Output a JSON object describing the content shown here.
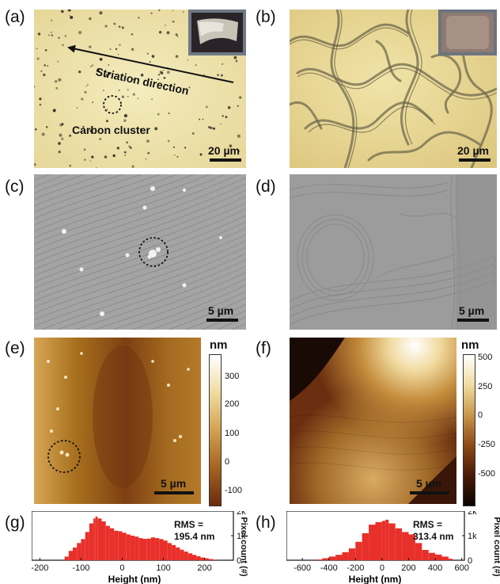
{
  "panels": {
    "a": {
      "label": "(a)",
      "striation": "Striation direction",
      "cluster": "Carbon cluster",
      "scale": "20 µm"
    },
    "b": {
      "label": "(b)",
      "scale": "20 µm"
    },
    "c": {
      "label": "(c)",
      "scale": "5 µm"
    },
    "d": {
      "label": "(d)",
      "scale": "5 µm"
    },
    "e": {
      "label": "(e)",
      "scale": "5 µm",
      "unit": "nm",
      "ticks": [
        "300",
        "200",
        "100",
        "0",
        "-100"
      ]
    },
    "f": {
      "label": "(f)",
      "scale": "5 µm",
      "unit": "nm",
      "ticks": [
        "500",
        "250",
        "0",
        "-250",
        "-500"
      ]
    },
    "g": {
      "label": "(g)",
      "rms_label": "RMS =",
      "rms_value": "195.4 nm"
    },
    "h": {
      "label": "(h)",
      "rms_label": "RMS =",
      "rms_value": "313.4 nm"
    }
  },
  "histogram": {
    "xlabel": "Height (nm)",
    "ylabel": "Pixel count (#)",
    "yticks": [
      "2k",
      "1k",
      "0"
    ]
  },
  "chart_data": [
    {
      "type": "area",
      "panel": "g",
      "xlabel": "Height (nm)",
      "ylabel": "Pixel count (#)",
      "xlim": [
        -220,
        270
      ],
      "ylim": [
        0,
        2000
      ],
      "xticks": [
        -200,
        -100,
        0,
        100,
        200
      ],
      "yticks": [
        "0",
        "1k",
        "2k"
      ],
      "annotation": "RMS = 195.4 nm",
      "x": [
        -145,
        -140,
        -130,
        -120,
        -110,
        -100,
        -90,
        -80,
        -70,
        -65,
        -60,
        -50,
        -40,
        -30,
        -20,
        -10,
        0,
        10,
        20,
        30,
        40,
        50,
        60,
        70,
        80,
        90,
        100,
        110,
        120,
        130,
        140,
        150,
        160,
        170,
        180,
        190,
        200,
        210,
        220,
        225,
        230
      ],
      "y": [
        0,
        150,
        380,
        520,
        700,
        860,
        1150,
        1500,
        1700,
        1780,
        1700,
        1580,
        1400,
        1300,
        1200,
        1180,
        1120,
        1050,
        1000,
        960,
        900,
        870,
        880,
        930,
        900,
        860,
        800,
        700,
        620,
        520,
        430,
        350,
        280,
        220,
        160,
        110,
        80,
        50,
        30,
        10,
        0
      ]
    },
    {
      "type": "area",
      "panel": "h",
      "xlabel": "Height (nm)",
      "ylabel": "Pixel count (#)",
      "xlim": [
        -720,
        620
      ],
      "ylim": [
        0,
        2000
      ],
      "xticks": [
        -600,
        -400,
        -200,
        0,
        200,
        400,
        600
      ],
      "yticks": [
        "0",
        "1k",
        "2k"
      ],
      "annotation": "RMS = 313.4 nm",
      "x": [
        -560,
        -500,
        -450,
        -400,
        -350,
        -300,
        -250,
        -200,
        -150,
        -100,
        -50,
        0,
        25,
        50,
        100,
        150,
        200,
        250,
        300,
        350,
        400,
        450,
        500,
        530
      ],
      "y": [
        0,
        30,
        80,
        150,
        220,
        330,
        480,
        750,
        1100,
        1450,
        1550,
        1600,
        1650,
        1500,
        1300,
        1150,
        1050,
        700,
        420,
        300,
        230,
        150,
        60,
        0
      ]
    }
  ]
}
